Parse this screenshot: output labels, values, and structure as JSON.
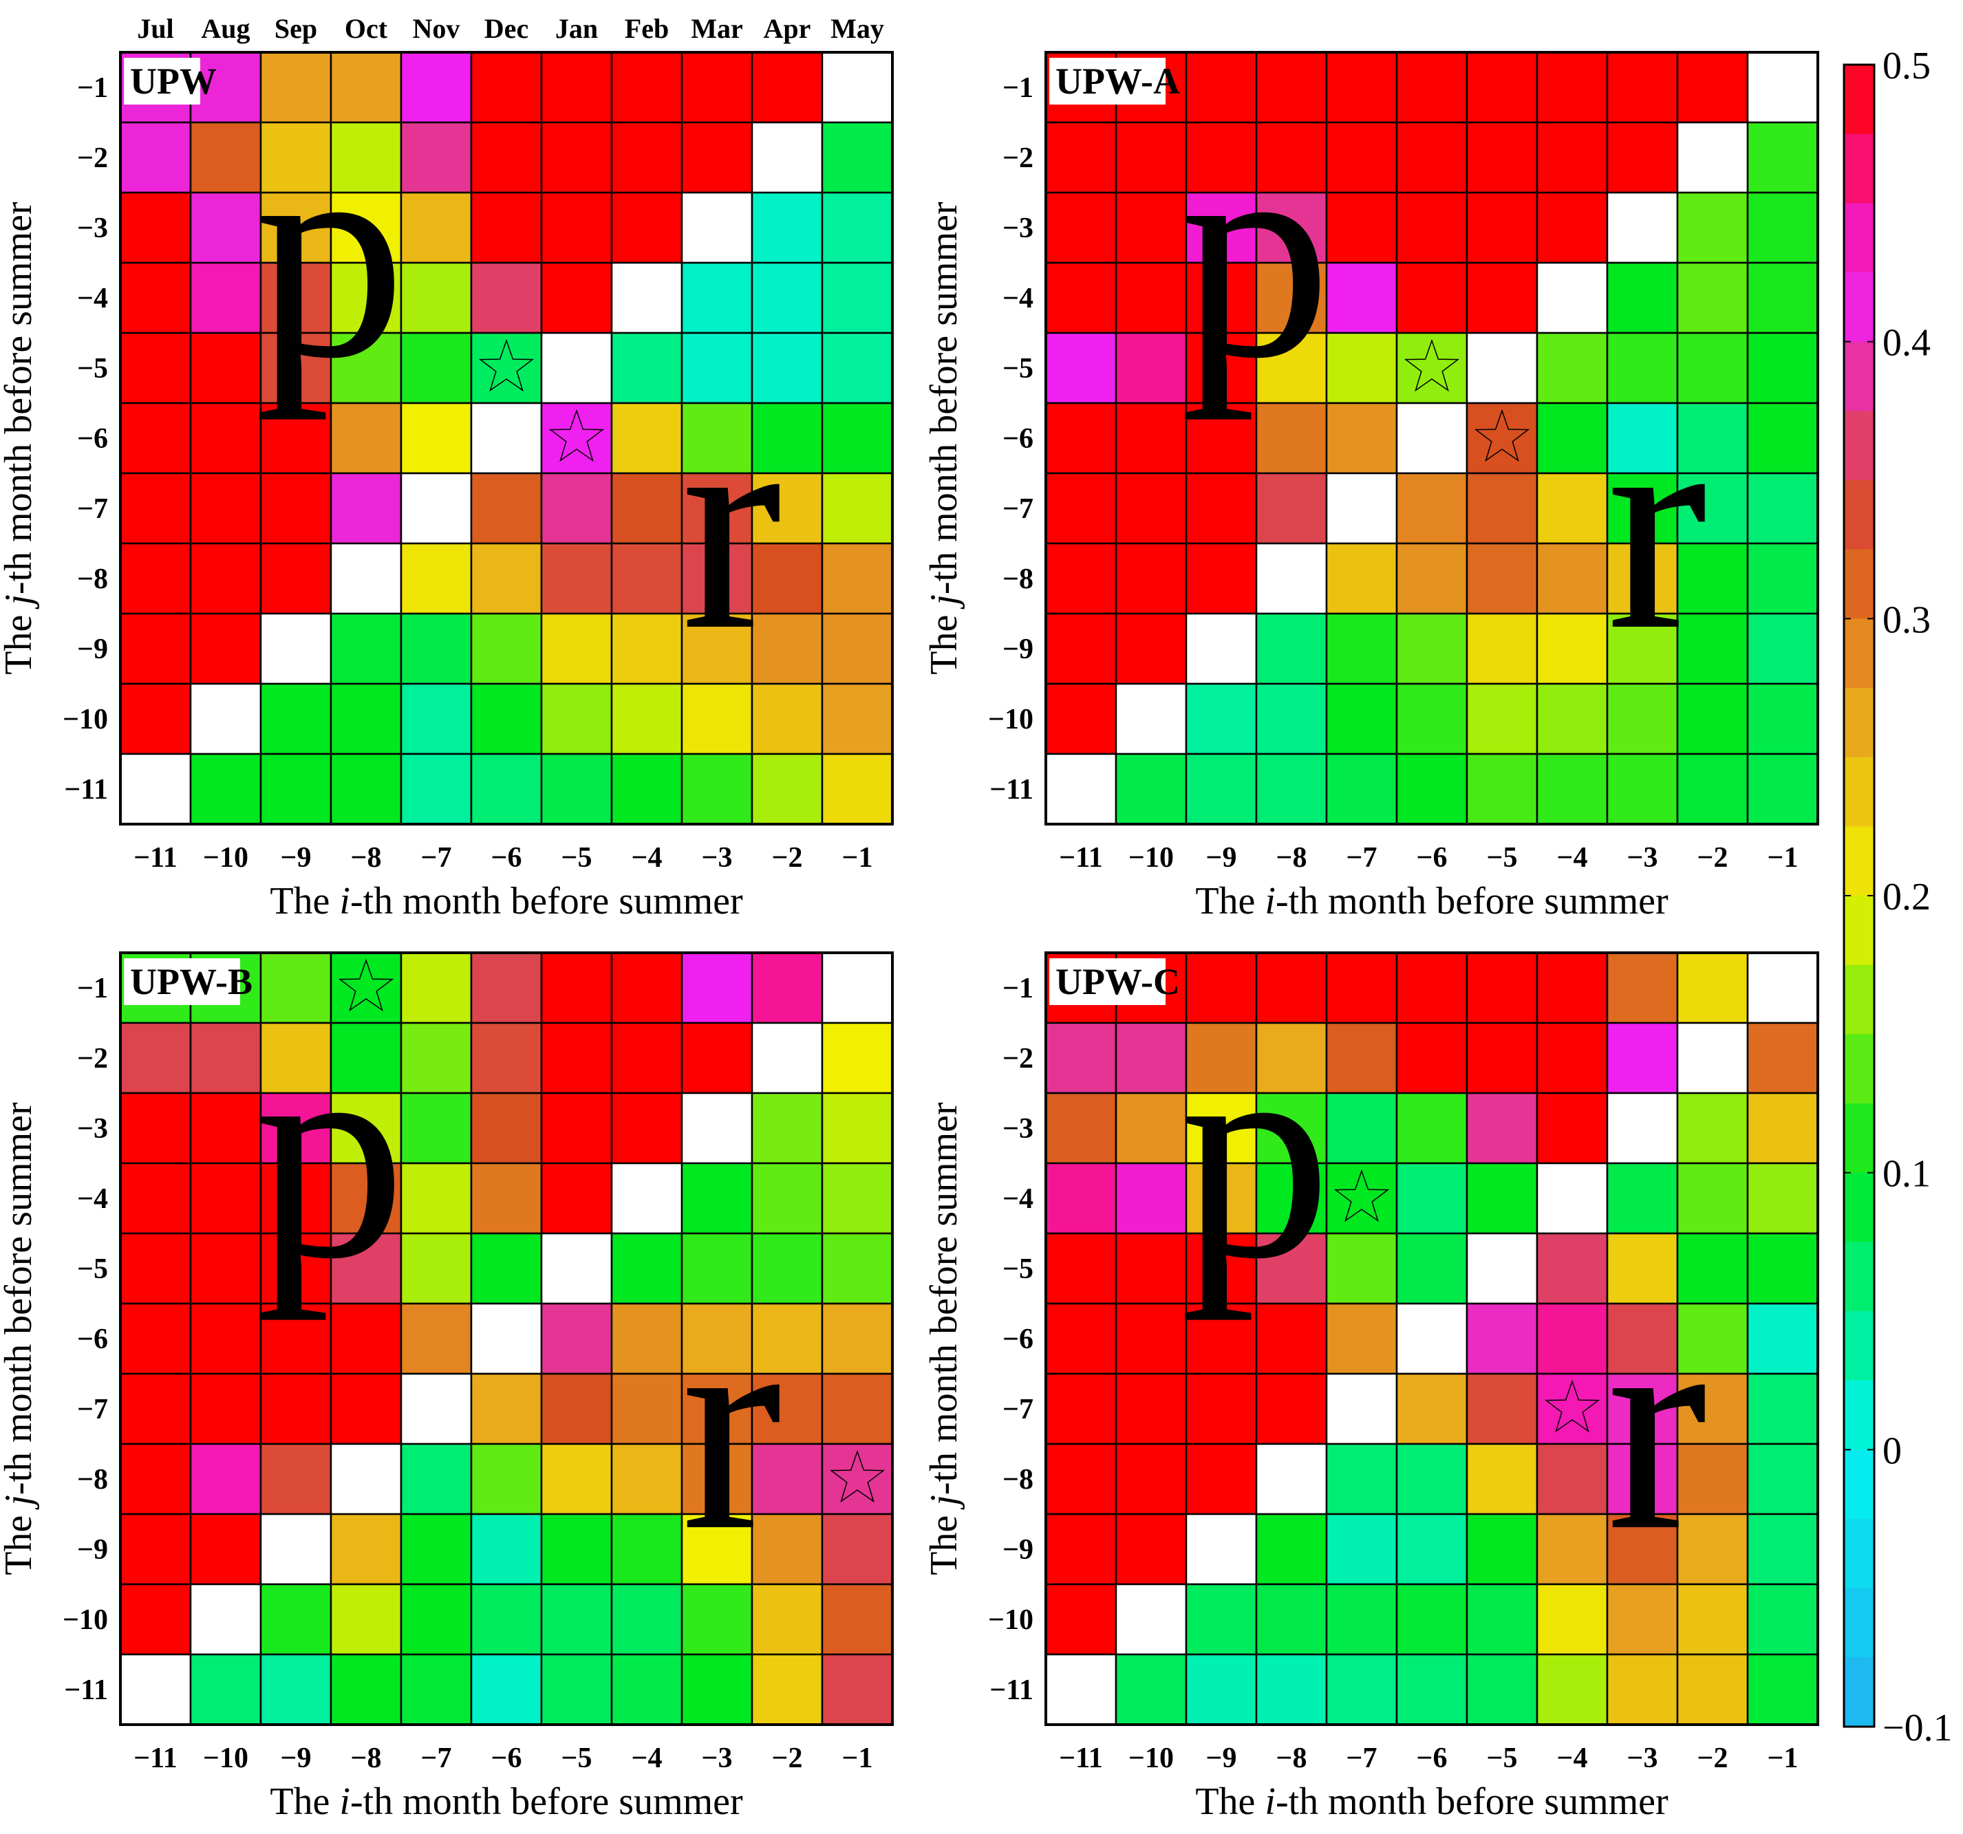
{
  "month_labels": [
    "Jul",
    "Aug",
    "Sep",
    "Oct",
    "Nov",
    "Dec",
    "Jan",
    "Feb",
    "Mar",
    "Apr",
    "May"
  ],
  "colorbar": {
    "tick_labels": [
      "0.5",
      "0.4",
      "0.3",
      "0.2",
      "0.1",
      "0",
      "−0.1"
    ],
    "ticks": [
      0.5,
      0.4,
      0.3,
      0.2,
      0.1,
      0,
      -0.1
    ],
    "range": [
      -0.1,
      0.5
    ],
    "colors": {
      "low": "#22b0f0",
      "zero": "#00f5f0",
      "green": "#00e820",
      "yellow": "#f0f000",
      "orange": "#e8a020",
      "rust": "#d85020",
      "magenta": "#f020f0",
      "red": "#ff0000",
      "diagonal": "#ffffff"
    }
  },
  "chart_data": [
    {
      "type": "heatmap",
      "title": "UPW",
      "xlabel": "The i-th month before summer",
      "ylabel": "The j-th month before summer",
      "x_ticks": [
        "−11",
        "−10",
        "−9",
        "−8",
        "−7",
        "−6",
        "−5",
        "−4",
        "−3",
        "−2",
        "−1"
      ],
      "y_ticks": [
        "−1",
        "−2",
        "−3",
        "−4",
        "−5",
        "−6",
        "−7",
        "−8",
        "−9",
        "−10",
        "−11"
      ],
      "region_labels": {
        "upper": "p",
        "lower": "r"
      },
      "colorscale": [
        -0.1,
        0.5
      ],
      "stars": [
        [
          4,
          5
        ],
        [
          5,
          6
        ]
      ],
      "cells": [
        [
          0.41,
          0.41,
          0.27,
          0.27,
          0.42,
          0.5,
          0.5,
          0.5,
          0.5,
          0.5,
          null
        ],
        [
          0.41,
          0.32,
          0.24,
          0.18,
          0.38,
          0.5,
          0.5,
          0.5,
          0.5,
          null,
          0.08
        ],
        [
          0.5,
          0.41,
          0.25,
          0.2,
          0.25,
          0.5,
          0.5,
          0.5,
          null,
          0.02,
          0.04
        ],
        [
          0.5,
          0.44,
          0.34,
          0.18,
          0.17,
          0.36,
          0.5,
          null,
          0.02,
          0.02,
          0.04
        ],
        [
          0.5,
          0.5,
          0.34,
          0.14,
          0.11,
          0.07,
          null,
          0.05,
          0.02,
          0.02,
          0.04
        ],
        [
          0.5,
          0.5,
          0.5,
          0.28,
          0.2,
          null,
          0.42,
          0.23,
          0.14,
          0.1,
          0.1
        ],
        [
          0.5,
          0.5,
          0.5,
          0.41,
          null,
          0.32,
          0.38,
          0.33,
          0.34,
          0.24,
          0.18
        ],
        [
          0.5,
          0.5,
          0.5,
          null,
          0.21,
          0.25,
          0.34,
          0.34,
          0.35,
          0.33,
          0.28
        ],
        [
          0.5,
          0.5,
          null,
          0.09,
          0.08,
          0.14,
          0.22,
          0.23,
          0.25,
          0.28,
          0.28
        ],
        [
          0.5,
          null,
          0.1,
          0.1,
          0.04,
          0.1,
          0.16,
          0.18,
          0.21,
          0.24,
          0.27
        ],
        [
          null,
          0.1,
          0.1,
          0.1,
          0.04,
          0.06,
          0.08,
          0.1,
          0.12,
          0.17,
          0.22
        ]
      ]
    },
    {
      "type": "heatmap",
      "title": "UPW-A",
      "xlabel": "The i-th month before summer",
      "ylabel": "The j-th month before summer",
      "x_ticks": [
        "−11",
        "−10",
        "−9",
        "−8",
        "−7",
        "−6",
        "−5",
        "−4",
        "−3",
        "−2",
        "−1"
      ],
      "y_ticks": [
        "−1",
        "−2",
        "−3",
        "−4",
        "−5",
        "−6",
        "−7",
        "−8",
        "−9",
        "−10",
        "−11"
      ],
      "region_labels": {
        "upper": "p",
        "lower": "r"
      },
      "colorscale": [
        -0.1,
        0.5
      ],
      "stars": [
        [
          4,
          5
        ],
        [
          5,
          6
        ]
      ],
      "cells": [
        [
          0.5,
          0.5,
          0.5,
          0.5,
          0.5,
          0.5,
          0.5,
          0.5,
          0.5,
          0.5,
          null
        ],
        [
          0.5,
          0.5,
          0.5,
          0.5,
          0.5,
          0.5,
          0.5,
          0.5,
          0.5,
          null,
          0.12
        ],
        [
          0.5,
          0.5,
          0.43,
          0.38,
          0.5,
          0.5,
          0.5,
          0.5,
          null,
          0.14,
          0.11
        ],
        [
          0.5,
          0.5,
          0.5,
          0.3,
          0.42,
          0.5,
          0.5,
          null,
          0.1,
          0.14,
          0.11
        ],
        [
          0.42,
          0.45,
          0.5,
          0.22,
          0.18,
          0.16,
          null,
          0.14,
          0.12,
          0.12,
          0.1
        ],
        [
          0.5,
          0.5,
          0.5,
          0.3,
          0.28,
          null,
          0.33,
          0.1,
          0.02,
          0.06,
          0.1
        ],
        [
          0.5,
          0.5,
          0.5,
          0.35,
          null,
          0.29,
          0.32,
          0.23,
          0.1,
          0.06,
          0.06
        ],
        [
          0.5,
          0.5,
          0.5,
          null,
          0.24,
          0.28,
          0.31,
          0.28,
          0.24,
          0.1,
          0.08
        ],
        [
          0.5,
          0.5,
          null,
          0.06,
          0.11,
          0.14,
          0.22,
          0.21,
          0.16,
          0.1,
          0.06
        ],
        [
          0.5,
          null,
          0.04,
          0.05,
          0.1,
          0.12,
          0.17,
          0.16,
          0.14,
          0.1,
          0.08
        ],
        [
          null,
          0.08,
          0.06,
          0.06,
          0.08,
          0.1,
          0.13,
          0.12,
          0.12,
          0.09,
          0.08
        ]
      ]
    },
    {
      "type": "heatmap",
      "title": "UPW-B",
      "xlabel": "The i-th month before summer",
      "ylabel": "The j-th month before summer",
      "x_ticks": [
        "−11",
        "−10",
        "−9",
        "−8",
        "−7",
        "−6",
        "−5",
        "−4",
        "−3",
        "−2",
        "−1"
      ],
      "y_ticks": [
        "−1",
        "−2",
        "−3",
        "−4",
        "−5",
        "−6",
        "−7",
        "−8",
        "−9",
        "−10",
        "−11"
      ],
      "region_labels": {
        "upper": "p",
        "lower": "r"
      },
      "colorscale": [
        -0.1,
        0.5
      ],
      "stars": [
        [
          0,
          3
        ],
        [
          7,
          10
        ]
      ],
      "cells": [
        [
          0.12,
          0.12,
          0.14,
          0.1,
          0.18,
          0.35,
          0.5,
          0.5,
          0.42,
          0.45,
          null
        ],
        [
          0.35,
          0.35,
          0.24,
          0.1,
          0.15,
          0.34,
          0.5,
          0.5,
          0.5,
          null,
          0.2
        ],
        [
          0.5,
          0.5,
          0.45,
          0.18,
          0.12,
          0.33,
          0.5,
          0.5,
          null,
          0.15,
          0.18
        ],
        [
          0.5,
          0.5,
          0.5,
          0.32,
          0.18,
          0.3,
          0.5,
          null,
          0.1,
          0.14,
          0.16
        ],
        [
          0.5,
          0.5,
          0.5,
          0.36,
          0.17,
          0.1,
          null,
          0.1,
          0.12,
          0.12,
          0.14
        ],
        [
          0.5,
          0.5,
          0.5,
          0.5,
          0.29,
          null,
          0.38,
          0.28,
          0.26,
          0.25,
          0.26
        ],
        [
          0.5,
          0.5,
          0.5,
          0.5,
          null,
          0.26,
          0.33,
          0.3,
          0.31,
          0.32,
          0.32
        ],
        [
          0.5,
          0.44,
          0.34,
          null,
          0.06,
          0.14,
          0.23,
          0.25,
          0.3,
          0.38,
          0.38
        ],
        [
          0.5,
          0.5,
          null,
          0.25,
          0.1,
          0.03,
          0.1,
          0.11,
          0.2,
          0.28,
          0.35
        ],
        [
          0.5,
          null,
          0.11,
          0.18,
          0.1,
          0.07,
          0.07,
          0.07,
          0.12,
          0.24,
          0.32
        ],
        [
          null,
          0.06,
          0.04,
          0.1,
          0.09,
          0.02,
          0.07,
          0.08,
          0.1,
          0.23,
          0.35
        ]
      ]
    },
    {
      "type": "heatmap",
      "title": "UPW-C",
      "xlabel": "The i-th month before summer",
      "ylabel": "The j-th month before summer",
      "x_ticks": [
        "−11",
        "−10",
        "−9",
        "−8",
        "−7",
        "−6",
        "−5",
        "−4",
        "−3",
        "−2",
        "−1"
      ],
      "y_ticks": [
        "−1",
        "−2",
        "−3",
        "−4",
        "−5",
        "−6",
        "−7",
        "−8",
        "−9",
        "−10",
        "−11"
      ],
      "region_labels": {
        "upper": "p",
        "lower": "r"
      },
      "colorscale": [
        -0.1,
        0.5
      ],
      "stars": [
        [
          3,
          4
        ],
        [
          6,
          7
        ]
      ],
      "cells": [
        [
          0.5,
          0.5,
          0.5,
          0.5,
          0.5,
          0.5,
          0.5,
          0.5,
          0.31,
          0.22,
          null
        ],
        [
          0.38,
          0.38,
          0.3,
          0.26,
          0.32,
          0.5,
          0.5,
          0.5,
          0.42,
          null,
          0.31
        ],
        [
          0.32,
          0.28,
          0.2,
          0.12,
          0.07,
          0.12,
          0.38,
          0.5,
          null,
          0.16,
          0.24
        ],
        [
          0.45,
          0.43,
          0.25,
          0.1,
          0.1,
          0.06,
          0.1,
          null,
          0.08,
          0.14,
          0.16
        ],
        [
          0.5,
          0.5,
          0.5,
          0.36,
          0.14,
          0.08,
          null,
          0.36,
          0.23,
          0.1,
          0.1
        ],
        [
          0.5,
          0.5,
          0.5,
          0.5,
          0.28,
          null,
          0.4,
          0.45,
          0.35,
          0.14,
          0.02
        ],
        [
          0.5,
          0.5,
          0.5,
          0.5,
          null,
          0.26,
          0.34,
          0.44,
          0.4,
          0.28,
          0.06
        ],
        [
          0.5,
          0.5,
          0.5,
          null,
          0.06,
          0.06,
          0.23,
          0.35,
          0.4,
          0.3,
          0.06
        ],
        [
          0.5,
          0.5,
          null,
          0.1,
          0.03,
          0.04,
          0.1,
          0.27,
          0.32,
          0.26,
          0.06
        ],
        [
          0.5,
          null,
          0.07,
          0.08,
          0.08,
          0.09,
          0.08,
          0.21,
          0.27,
          0.24,
          0.07
        ],
        [
          null,
          0.07,
          0.03,
          0.03,
          0.05,
          0.06,
          0.07,
          0.17,
          0.24,
          0.24,
          0.09
        ]
      ]
    }
  ]
}
